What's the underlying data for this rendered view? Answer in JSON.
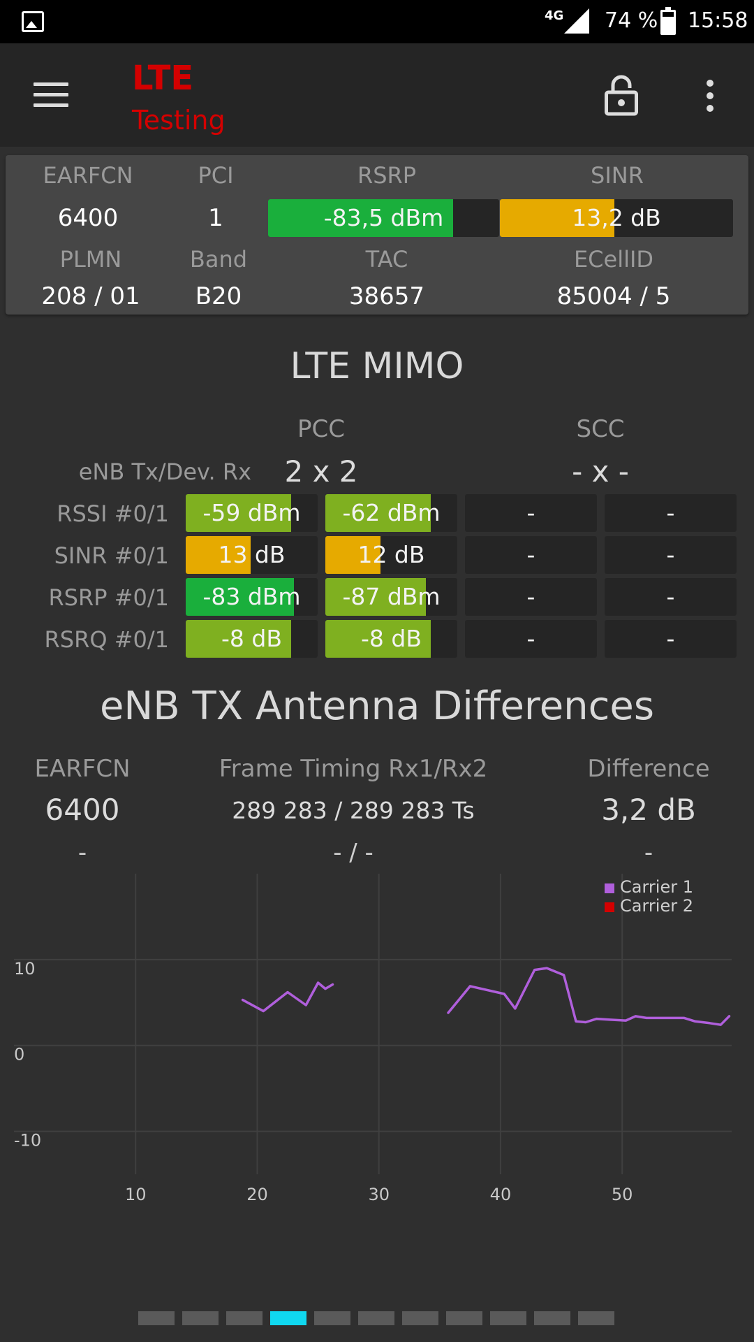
{
  "status_bar": {
    "network": "4G",
    "battery": "74 %",
    "time": "15:58"
  },
  "app_bar": {
    "title": "LTE",
    "subtitle": "Testing"
  },
  "serving_cell": {
    "earfcn_label": "EARFCN",
    "earfcn": "6400",
    "pci_label": "PCI",
    "pci": "1",
    "rsrp_label": "RSRP",
    "rsrp": "-83,5 dBm",
    "rsrp_level": 0.8,
    "sinr_label": "SINR",
    "sinr": "13,2 dB",
    "sinr_level": 0.49,
    "plmn_label": "PLMN",
    "plmn": "208 / 01",
    "band_label": "Band",
    "band": "B20",
    "tac_label": "TAC",
    "tac": "38657",
    "ecellid_label": "ECellID",
    "ecellid": "85004 / 5"
  },
  "mimo": {
    "title": "LTE MIMO",
    "pcc_label": "PCC",
    "scc_label": "SCC",
    "config_label": "eNB Tx/Dev. Rx",
    "pcc_config": "2 x 2",
    "scc_config": "- x -",
    "rows": [
      {
        "label": "RSSI #0/1",
        "cells": [
          {
            "text": "-59 dBm",
            "level": 0.8,
            "color": "#7fb020"
          },
          {
            "text": "-62 dBm",
            "level": 0.8,
            "color": "#7fb020"
          },
          {
            "text": "-",
            "level": 0,
            "color": "#7fb020"
          },
          {
            "text": "-",
            "level": 0,
            "color": "#7fb020"
          }
        ]
      },
      {
        "label": "SINR #0/1",
        "cells": [
          {
            "text": "13 dB",
            "level": 0.49,
            "color": "#e6aa00"
          },
          {
            "text": "12 dB",
            "level": 0.42,
            "color": "#e6aa00"
          },
          {
            "text": "-",
            "level": 0,
            "color": "#e6aa00"
          },
          {
            "text": "-",
            "level": 0,
            "color": "#e6aa00"
          }
        ]
      },
      {
        "label": "RSRP #0/1",
        "cells": [
          {
            "text": "-83 dBm",
            "level": 0.82,
            "color": "#1aaf3c"
          },
          {
            "text": "-87 dBm",
            "level": 0.76,
            "color": "#7fb020"
          },
          {
            "text": "-",
            "level": 0,
            "color": "#1aaf3c"
          },
          {
            "text": "-",
            "level": 0,
            "color": "#1aaf3c"
          }
        ]
      },
      {
        "label": "RSRQ #0/1",
        "cells": [
          {
            "text": "-8 dB",
            "level": 0.8,
            "color": "#7fb020"
          },
          {
            "text": "-8 dB",
            "level": 0.8,
            "color": "#7fb020"
          },
          {
            "text": "-",
            "level": 0,
            "color": "#7fb020"
          },
          {
            "text": "-",
            "level": 0,
            "color": "#7fb020"
          }
        ]
      }
    ]
  },
  "antenna_diff": {
    "title": "eNB TX Antenna Differences",
    "earfcn_label": "EARFCN",
    "timing_label": "Frame Timing Rx1/Rx2",
    "difference_label": "Difference",
    "row1": {
      "earfcn": "6400",
      "timing": "289 283 / 289 283 Ts",
      "difference": "3,2 dB"
    },
    "row2": {
      "earfcn": "-",
      "timing": "- / -",
      "difference": "-"
    }
  },
  "chart_data": {
    "type": "line",
    "title": "",
    "xlabel": "",
    "ylabel": "",
    "xlim": [
      0,
      59
    ],
    "ylim": [
      -15,
      20
    ],
    "x_ticks": [
      10,
      20,
      30,
      40,
      50
    ],
    "y_ticks": [
      10,
      0,
      -10
    ],
    "grid": true,
    "legend_position": "top-right",
    "series": [
      {
        "name": "Carrier 1",
        "color": "#b05fdc",
        "segments": [
          [
            [
              18.8,
              5.3
            ],
            [
              20.5,
              4.0
            ],
            [
              22.5,
              6.2
            ],
            [
              24,
              4.7
            ],
            [
              25,
              7.3
            ],
            [
              25.6,
              6.6
            ],
            [
              26.2,
              7.1
            ]
          ],
          [
            [
              35.7,
              3.8
            ],
            [
              37.5,
              6.9
            ],
            [
              40.3,
              6.0
            ],
            [
              41.2,
              4.3
            ],
            [
              42.8,
              8.8
            ],
            [
              43.8,
              9.0
            ],
            [
              45.2,
              8.2
            ],
            [
              46.2,
              2.8
            ],
            [
              47,
              2.7
            ],
            [
              47.9,
              3.1
            ],
            [
              49,
              3.0
            ],
            [
              50.3,
              2.9
            ],
            [
              51.1,
              3.4
            ],
            [
              52,
              3.2
            ],
            [
              53.7,
              3.2
            ],
            [
              55.1,
              3.2
            ],
            [
              56,
              2.8
            ],
            [
              57.2,
              2.6
            ],
            [
              58.1,
              2.4
            ],
            [
              58.8,
              3.4
            ]
          ]
        ]
      },
      {
        "name": "Carrier 2",
        "color": "#d40000",
        "segments": []
      }
    ]
  },
  "pager": {
    "count": 11,
    "active_index": 3
  }
}
